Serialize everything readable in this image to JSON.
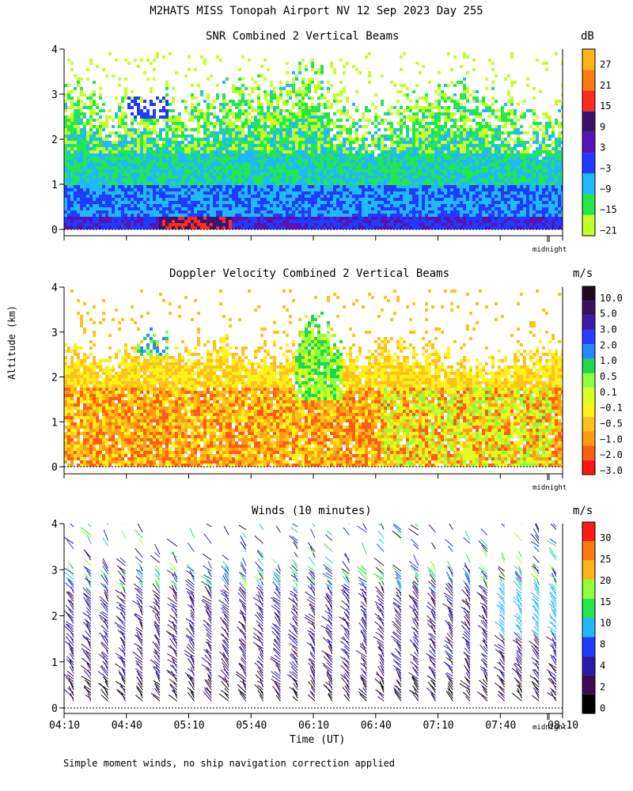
{
  "header": {
    "title": "M2HATS MISS Tonopah Airport NV  12 Sep 2023 Day 255"
  },
  "footnote": "Simple moment winds, no ship navigation correction applied",
  "colors": {
    "snr_scale": [
      "#c4ff26",
      "#22e84c",
      "#22b8ff",
      "#1f3bff",
      "#5a12b8",
      "#3b1270",
      "#ff2b1a",
      "#ff7a10",
      "#ffb31a"
    ],
    "vel_scale": [
      "#ff1212",
      "#ff5e12",
      "#ff9a12",
      "#ffc21a",
      "#fff21a",
      "#d8ff26",
      "#90ff3a",
      "#22d84a",
      "#1f8cff",
      "#2a3cff",
      "#3b1aa8",
      "#3a1260",
      "#22081e"
    ],
    "wind_scale": [
      "#000000",
      "#3c0a5a",
      "#2a1aa8",
      "#1f3bff",
      "#22b8ff",
      "#22e84c",
      "#90ff3a",
      "#ffb31a",
      "#ff7a10",
      "#ff1a12"
    ]
  },
  "chart_data": [
    {
      "type": "heatmap",
      "title": "SNR Combined 2 Vertical Beams",
      "ylabel": "Altitude (km)",
      "yticks": [
        "0",
        "1",
        "2",
        "3",
        "4"
      ],
      "xmarker": "midnight",
      "ylim": [
        0,
        4
      ],
      "colorbar": {
        "unit": "dB",
        "labels": [
          "27",
          "21",
          "15",
          "9",
          "3",
          "−3",
          "−9",
          "−15",
          "−21"
        ]
      },
      "profile": [
        {
          "alt": 0.3,
          "value": 3
        },
        {
          "alt": 0.8,
          "value": -3
        },
        {
          "alt": 1.3,
          "value": -6
        },
        {
          "alt": 1.8,
          "value": -9
        },
        {
          "alt": 2.2,
          "value": -15
        },
        {
          "alt": 2.8,
          "value": -18
        },
        {
          "alt": 3.5,
          "value": -21
        }
      ]
    },
    {
      "type": "heatmap",
      "title": "Doppler Velocity Combined 2 Vertical Beams",
      "ylabel": "Altitude (km)",
      "yticks": [
        "0",
        "1",
        "2",
        "3",
        "4"
      ],
      "xmarker": "midnight",
      "ylim": [
        0,
        4
      ],
      "colorbar": {
        "unit": "m/s",
        "labels": [
          "10.0",
          "5.0",
          "3.0",
          "2.0",
          "1.0",
          "0.5",
          "0.1",
          "−0.1",
          "−0.5",
          "−1.0",
          "−2.0",
          "−3.0"
        ]
      }
    },
    {
      "type": "scatter",
      "title": "Winds (10 minutes)",
      "ylabel": "Altitude (km)",
      "xlabel": "Time (UT)",
      "yticks": [
        "0",
        "1",
        "2",
        "3",
        "4"
      ],
      "xticks": [
        "04:10",
        "04:40",
        "05:10",
        "05:40",
        "06:10",
        "06:40",
        "07:10",
        "07:40",
        "08:10"
      ],
      "xmarker": "midnight",
      "ylim": [
        0,
        4
      ],
      "colorbar": {
        "unit": "m/s",
        "labels": [
          "30",
          "25",
          "20",
          "15",
          "10",
          "8",
          "4",
          "2",
          "0"
        ]
      }
    }
  ]
}
